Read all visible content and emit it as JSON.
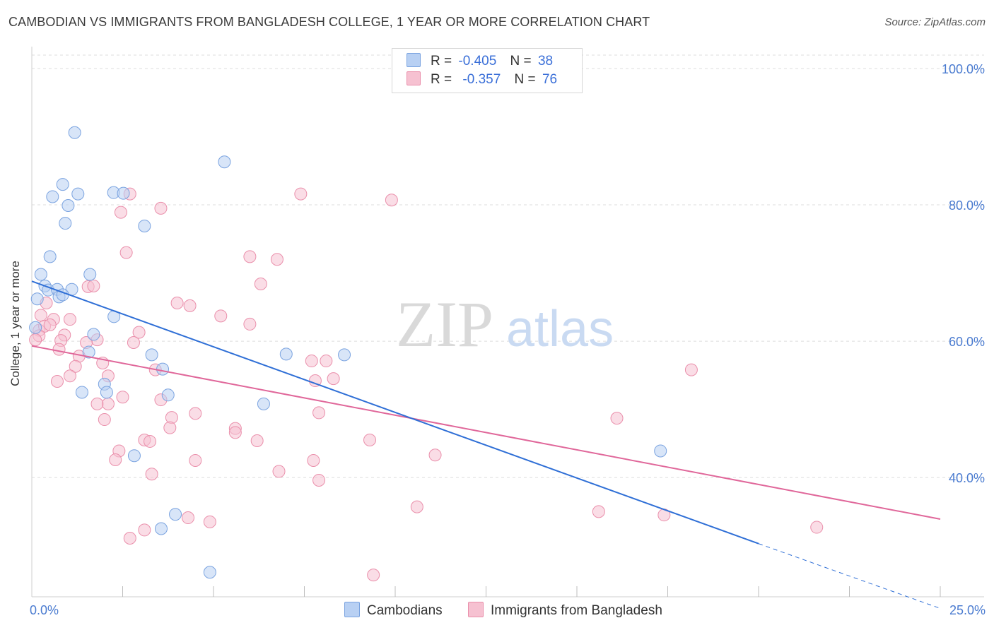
{
  "title": "CAMBODIAN VS IMMIGRANTS FROM BANGLADESH COLLEGE, 1 YEAR OR MORE CORRELATION CHART",
  "source": "Source: ZipAtlas.com",
  "watermark": {
    "zip": "ZIP",
    "atlas": "atlas"
  },
  "legend_top": {
    "rows": [
      {
        "r_label": "R =",
        "r_value": "-0.405",
        "n_label": "N =",
        "n_value": "38"
      },
      {
        "r_label": "R =",
        "r_value": "-0.357",
        "n_label": "N =",
        "n_value": "76"
      }
    ]
  },
  "legend_bottom": {
    "items": [
      "Cambodians",
      "Immigrants from Bangladesh"
    ]
  },
  "colors": {
    "blue_fill": "#b8d0f3",
    "blue_stroke": "#7aa3e0",
    "blue_line": "#2f6fd6",
    "pink_fill": "#f6c1d1",
    "pink_stroke": "#ea8fab",
    "pink_line": "#e0679a",
    "tick_label": "#4a7bd0",
    "grid": "#dedede"
  },
  "chart_data": {
    "type": "scatter",
    "title": "CAMBODIAN VS IMMIGRANTS FROM BANGLADESH COLLEGE, 1 YEAR OR MORE CORRELATION CHART",
    "xlabel": "",
    "ylabel": "College, 1 year or more",
    "xlim": [
      0,
      25
    ],
    "ylim": [
      20,
      103
    ],
    "x_tick_labels": [
      {
        "value": 0,
        "label": "0.0%"
      },
      {
        "value": 25,
        "label": "25.0%"
      }
    ],
    "y_ticks": [
      {
        "value": 40,
        "label": "40.0%"
      },
      {
        "value": 60,
        "label": "60.0%"
      },
      {
        "value": 80,
        "label": "80.0%"
      },
      {
        "value": 100,
        "label": "100.0%"
      }
    ],
    "grid": "horizontal dashed",
    "legend_position": "top-center",
    "series": [
      {
        "name": "Cambodians",
        "color": "#b8d0f3",
        "trend": {
          "x0": 0,
          "y0": 68.8,
          "x1": 20,
          "y1": 30.3,
          "dashed_to_x": 25,
          "dashed_to_y": 20.8
        },
        "points": [
          [
            1.18,
            90.6
          ],
          [
            5.3,
            86.3
          ],
          [
            0.85,
            83.0
          ],
          [
            1.27,
            81.6
          ],
          [
            2.25,
            81.8
          ],
          [
            2.52,
            81.7
          ],
          [
            0.57,
            81.2
          ],
          [
            1.0,
            79.9
          ],
          [
            0.92,
            77.3
          ],
          [
            3.1,
            76.9
          ],
          [
            0.5,
            72.4
          ],
          [
            0.25,
            69.8
          ],
          [
            1.6,
            69.8
          ],
          [
            0.36,
            68.1
          ],
          [
            0.45,
            67.5
          ],
          [
            0.7,
            67.6
          ],
          [
            1.1,
            67.6
          ],
          [
            0.75,
            66.5
          ],
          [
            0.85,
            66.8
          ],
          [
            0.15,
            66.2
          ],
          [
            2.26,
            63.6
          ],
          [
            0.1,
            62.0
          ],
          [
            1.7,
            61.0
          ],
          [
            1.57,
            58.4
          ],
          [
            3.3,
            58.0
          ],
          [
            7.0,
            58.1
          ],
          [
            8.6,
            58.0
          ],
          [
            3.6,
            55.9
          ],
          [
            2.0,
            53.7
          ],
          [
            1.38,
            52.5
          ],
          [
            2.06,
            52.5
          ],
          [
            3.75,
            52.1
          ],
          [
            6.38,
            50.8
          ],
          [
            2.82,
            43.2
          ],
          [
            17.3,
            43.9
          ],
          [
            3.95,
            34.6
          ],
          [
            3.56,
            32.5
          ],
          [
            4.9,
            26.1
          ]
        ]
      },
      {
        "name": "Immigrants from Bangladesh",
        "color": "#f6c1d1",
        "trend": {
          "x0": 0,
          "y0": 59.3,
          "x1": 25,
          "y1": 33.9
        },
        "points": [
          [
            2.7,
            81.6
          ],
          [
            7.4,
            81.6
          ],
          [
            9.9,
            80.7
          ],
          [
            3.55,
            79.5
          ],
          [
            2.45,
            78.9
          ],
          [
            2.6,
            73.0
          ],
          [
            6.0,
            72.4
          ],
          [
            6.75,
            72.0
          ],
          [
            6.3,
            68.4
          ],
          [
            1.55,
            68.0
          ],
          [
            1.7,
            68.1
          ],
          [
            4.0,
            65.6
          ],
          [
            4.35,
            65.2
          ],
          [
            0.4,
            65.6
          ],
          [
            0.25,
            63.8
          ],
          [
            5.2,
            63.7
          ],
          [
            6.0,
            62.5
          ],
          [
            0.6,
            63.2
          ],
          [
            0.2,
            61.6
          ],
          [
            1.05,
            63.2
          ],
          [
            2.95,
            61.3
          ],
          [
            0.35,
            62.2
          ],
          [
            0.5,
            62.4
          ],
          [
            0.2,
            60.8
          ],
          [
            0.1,
            60.2
          ],
          [
            0.9,
            60.9
          ],
          [
            0.8,
            60.1
          ],
          [
            1.8,
            60.2
          ],
          [
            1.5,
            59.8
          ],
          [
            2.8,
            59.8
          ],
          [
            0.75,
            58.8
          ],
          [
            1.3,
            57.8
          ],
          [
            7.7,
            57.1
          ],
          [
            8.1,
            57.1
          ],
          [
            1.95,
            56.8
          ],
          [
            1.2,
            56.3
          ],
          [
            3.4,
            55.8
          ],
          [
            18.15,
            55.8
          ],
          [
            1.05,
            54.9
          ],
          [
            2.1,
            54.9
          ],
          [
            0.7,
            54.1
          ],
          [
            7.8,
            54.2
          ],
          [
            8.3,
            54.5
          ],
          [
            2.5,
            51.8
          ],
          [
            3.55,
            51.4
          ],
          [
            1.8,
            50.8
          ],
          [
            2.1,
            50.8
          ],
          [
            4.5,
            49.4
          ],
          [
            7.9,
            49.5
          ],
          [
            3.85,
            48.8
          ],
          [
            2.0,
            48.5
          ],
          [
            16.1,
            48.7
          ],
          [
            3.8,
            47.3
          ],
          [
            5.6,
            47.2
          ],
          [
            5.6,
            46.6
          ],
          [
            3.1,
            45.5
          ],
          [
            3.25,
            45.3
          ],
          [
            6.2,
            45.4
          ],
          [
            9.3,
            45.5
          ],
          [
            2.4,
            43.9
          ],
          [
            2.3,
            42.6
          ],
          [
            4.5,
            42.5
          ],
          [
            7.75,
            42.5
          ],
          [
            11.1,
            43.3
          ],
          [
            3.3,
            40.5
          ],
          [
            6.8,
            40.9
          ],
          [
            7.9,
            39.6
          ],
          [
            10.6,
            35.7
          ],
          [
            15.6,
            35.0
          ],
          [
            17.4,
            34.5
          ],
          [
            4.3,
            34.1
          ],
          [
            4.9,
            33.5
          ],
          [
            21.6,
            32.7
          ],
          [
            3.1,
            32.3
          ],
          [
            2.7,
            31.1
          ],
          [
            9.4,
            25.7
          ]
        ]
      }
    ]
  }
}
